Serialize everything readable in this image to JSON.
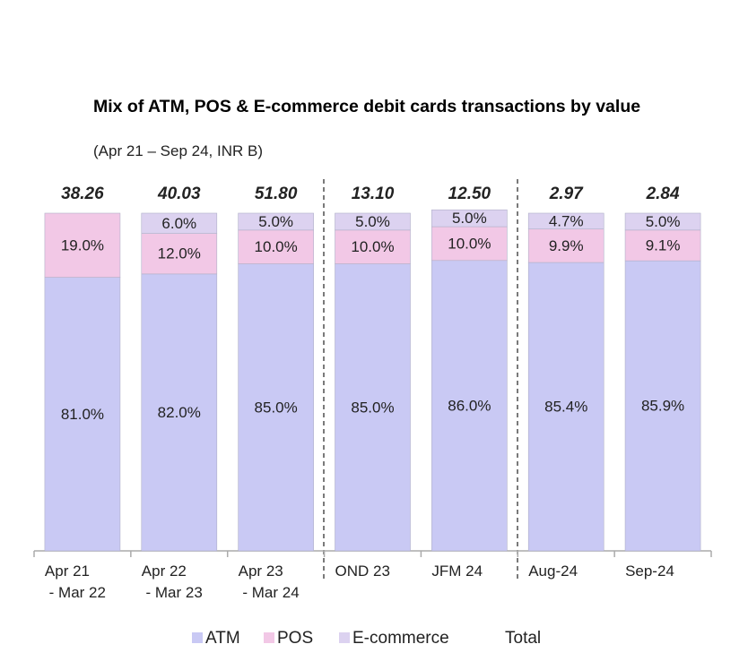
{
  "chart_data": {
    "type": "stacked_bar",
    "title": "Mix of ATM, POS & E-commerce debit cards transactions by value",
    "subtitle": "(Apr 21 – Sep 24, INR B)",
    "categories": [
      "Apr 21\n - Mar 22",
      "Apr 22\n - Mar 23",
      "Apr 23\n - Mar 24",
      "OND 23",
      "JFM 24",
      "Aug-24",
      "Sep-24"
    ],
    "series": [
      {
        "name": "ATM",
        "color": "#c9c9f4",
        "values": [
          81,
          82,
          85,
          85,
          86,
          85.4,
          85.9
        ],
        "value_labels": [
          "81.0%",
          "82.0%",
          "85.0%",
          "85.0%",
          "86.0%",
          "85.4%",
          "85.9%"
        ]
      },
      {
        "name": "POS",
        "color": "#f2c8e6",
        "values": [
          19,
          12,
          10,
          10,
          10,
          9.9,
          9.1
        ],
        "value_labels": [
          "19.0%",
          "12.0%",
          "10.0%",
          "10.0%",
          "10.0%",
          "9.9%",
          "9.1%"
        ]
      },
      {
        "name": "E-commerce",
        "color": "#dcd2f0",
        "values": [
          null,
          6,
          5,
          5,
          5,
          4.7,
          5
        ],
        "value_labels": [
          null,
          "6.0%",
          "5.0%",
          "5.0%",
          "5.0%",
          "4.7%",
          "5.0%"
        ]
      }
    ],
    "totals": {
      "name": "Total",
      "values": [
        38.26,
        40.03,
        51.8,
        13.1,
        12.5,
        2.97,
        2.84
      ],
      "value_labels": [
        "38.26",
        "40.03",
        "51.80",
        "13.10",
        "12.50",
        "2.97",
        "2.84"
      ]
    },
    "ylim": [
      0,
      100
    ]
  }
}
